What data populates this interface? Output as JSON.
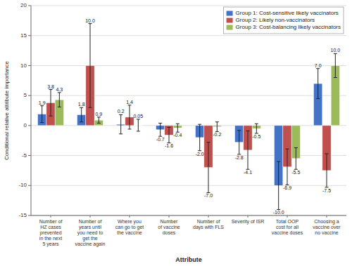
{
  "chart_data": {
    "type": "bar",
    "categories": [
      "Number of\nHZ cases\nprevented\nin the next\n5 years",
      "Number of\nyears until\nyou need to\nget the\nvaccine again",
      "Where you\ncan go to get\nthe vaccine",
      "Number\nof vaccine\ndoses",
      "Number of\ndays with FLS",
      "Severity of ISR",
      "Total OOP\ncost for all\nvaccine doses",
      "Choosing a\nvaccine over\nno vaccine"
    ],
    "series": [
      {
        "name": "Group 1: Cost-sensitive likely vaccinators",
        "color": "#4472C4",
        "values": [
          1.9,
          1.8,
          0.2,
          -0.7,
          -2.0,
          -2.8,
          -10.0,
          7.0
        ],
        "err_low": [
          1.4,
          1.2,
          1.6,
          1.1,
          2.2,
          2.0,
          4.0,
          2.5
        ],
        "err_high": [
          1.4,
          1.2,
          1.6,
          1.1,
          2.2,
          2.0,
          4.0,
          2.5
        ],
        "value_labels": [
          "1.9",
          "1.8",
          "0.2",
          "-0.7",
          "-2.0",
          "-2.8",
          "-10.0",
          "7.0"
        ]
      },
      {
        "name": "Group 2: Likely non-vaccinators",
        "color": "#C0504D",
        "values": [
          3.8,
          10.0,
          1.4,
          -1.6,
          -7.0,
          -4.1,
          -6.9,
          -7.5
        ],
        "err_low": [
          2.2,
          7.0,
          2.0,
          1.3,
          4.2,
          3.2,
          3.0,
          2.8
        ],
        "err_high": [
          2.2,
          7.0,
          2.0,
          1.3,
          4.2,
          3.2,
          3.0,
          2.8
        ],
        "value_labels": [
          "3.8",
          "10.0",
          "1.4",
          "-1.6",
          "-7.0",
          "-4.1",
          "-6.9",
          "-7.5"
        ]
      },
      {
        "name": "Group 3: Cost-balancing likely vaccinators",
        "color": "#9BBB59",
        "values": [
          4.3,
          0.9,
          0.05,
          -0.4,
          -0.2,
          -0.5,
          -5.5,
          10.0
        ],
        "err_low": [
          1.2,
          0.5,
          1.0,
          0.7,
          0.8,
          0.8,
          1.8,
          2.0
        ],
        "err_high": [
          1.2,
          0.5,
          1.0,
          0.7,
          0.8,
          0.8,
          1.8,
          2.0
        ],
        "value_labels": [
          "4.3",
          "0.9",
          "0.05",
          "-0.4",
          "-0.2",
          "-0.5",
          "-5.5",
          "10.0"
        ]
      }
    ],
    "ylim": [
      -15,
      20
    ],
    "yticks": [
      -15,
      -10,
      -5,
      0,
      5,
      10,
      15,
      20
    ],
    "ylabel": "Conditional relative attribute importance",
    "xlabel": "Attribute",
    "grid": true,
    "legend": "upper right",
    "data_labels": true
  }
}
